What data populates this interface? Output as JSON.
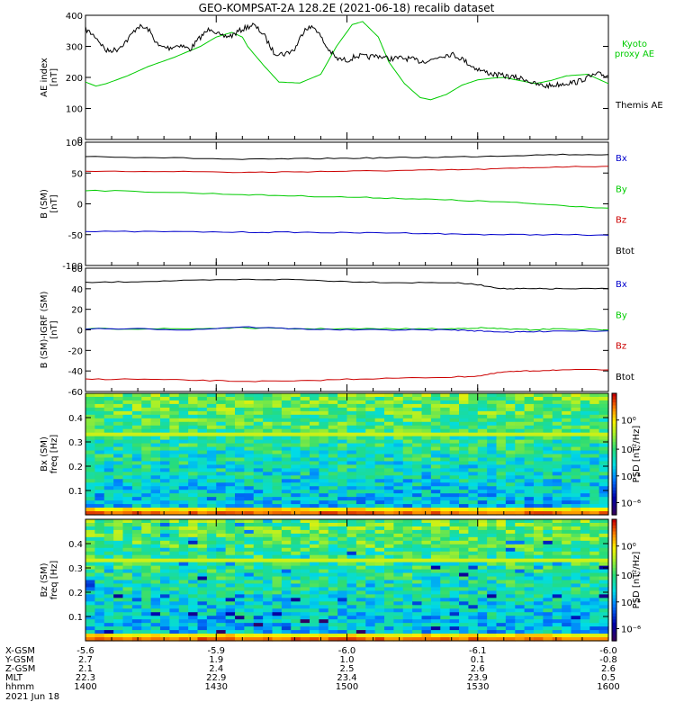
{
  "chart_data": {
    "title": "GEO-KOMPSAT-2A 128.2E (2021-06-18) recalib dataset",
    "panels": [
      {
        "type": "line",
        "ylabel_lines": [
          "AE index",
          "[nT]"
        ],
        "ylim": [
          0,
          400
        ],
        "yticks": [
          0,
          100,
          200,
          300,
          400
        ],
        "grid": false,
        "legend": [
          "Kyoto",
          "proxy AE",
          "Themis AE"
        ],
        "series": [
          {
            "name": "Kyoto proxy AE",
            "color": "#00cc00",
            "x": [
              0,
              2,
              4,
              8,
              12,
              17,
              22,
              25,
              28,
              30,
              31,
              34,
              37,
              41,
              45,
              48,
              51,
              53,
              56,
              58,
              61,
              64,
              66,
              69,
              72,
              75,
              78,
              80,
              83,
              86,
              89,
              92,
              96,
              100
            ],
            "y": [
              185,
              172,
              180,
              205,
              235,
              265,
              300,
              330,
              345,
              330,
              300,
              240,
              185,
              182,
              210,
              300,
              370,
              380,
              330,
              250,
              180,
              135,
              128,
              145,
              175,
              192,
              198,
              200,
              190,
              180,
              190,
              205,
              210,
              180
            ]
          },
          {
            "name": "Themis AE",
            "color": "#000000",
            "x": [
              0,
              2,
              4,
              6,
              8,
              10,
              12,
              14,
              16,
              18,
              20,
              22,
              24,
              26,
              28,
              30,
              32,
              34,
              36,
              38,
              40,
              42,
              44,
              46,
              48,
              50,
              52,
              54,
              56,
              58,
              60,
              62,
              64,
              66,
              68,
              70,
              72,
              74,
              76,
              78,
              80,
              82,
              84,
              86,
              88,
              90,
              92,
              94,
              96,
              98,
              100
            ],
            "y": [
              355,
              330,
              285,
              290,
              320,
              365,
              355,
              300,
              295,
              305,
              290,
              330,
              360,
              330,
              335,
              355,
              370,
              340,
              280,
              275,
              290,
              360,
              360,
              300,
              260,
              255,
              270,
              265,
              270,
              260,
              262,
              260,
              252,
              255,
              270,
              275,
              260,
              235,
              220,
              210,
              205,
              200,
              195,
              178,
              172,
              176,
              182,
              185,
              200,
              210,
              205
            ]
          }
        ]
      },
      {
        "type": "line",
        "ylabel_lines": [
          "B (SM)",
          "[nT]"
        ],
        "ylim": [
          -100,
          100
        ],
        "yticks": [
          -100,
          -50,
          0,
          50,
          100
        ],
        "grid": false,
        "legend": [
          "Bx",
          "By",
          "Bz",
          "Btot"
        ],
        "series": [
          {
            "name": "Btot",
            "color": "#000000",
            "x": [
              0,
              15,
              30,
              40,
              50,
              60,
              70,
              80,
              90,
              100
            ],
            "y": [
              77,
              75,
              72,
              73,
              74,
              75,
              76,
              78,
              80,
              80
            ]
          },
          {
            "name": "Bz",
            "color": "#cc0000",
            "x": [
              0,
              15,
              30,
              40,
              50,
              60,
              70,
              80,
              90,
              100
            ],
            "y": [
              52,
              53,
              51,
              52,
              53,
              54,
              55,
              57,
              60,
              61
            ]
          },
          {
            "name": "By",
            "color": "#00cc00",
            "x": [
              0,
              15,
              30,
              40,
              50,
              60,
              70,
              80,
              90,
              100
            ],
            "y": [
              22,
              19,
              15,
              13,
              11,
              9,
              6,
              3,
              -2,
              -7
            ]
          },
          {
            "name": "Bx",
            "color": "#0000cc",
            "x": [
              0,
              15,
              30,
              40,
              50,
              60,
              70,
              80,
              90,
              100
            ],
            "y": [
              -45,
              -45,
              -46,
              -46,
              -47,
              -47,
              -49,
              -50,
              -50,
              -51
            ]
          }
        ]
      },
      {
        "type": "line",
        "ylabel_lines": [
          "B (SM)-IGRF (SM)",
          "[nT]"
        ],
        "ylim": [
          -60,
          60
        ],
        "yticks": [
          -60,
          -40,
          -20,
          0,
          20,
          40,
          60
        ],
        "grid": false,
        "legend": [
          "Bx",
          "By",
          "Bz",
          "Btot"
        ],
        "series": [
          {
            "name": "Btot",
            "color": "#000000",
            "x": [
              0,
              10,
              20,
              30,
              40,
              50,
              60,
              70,
              75,
              80,
              85,
              90,
              100
            ],
            "y": [
              46,
              47,
              48,
              49,
              49,
              47,
              46,
              46,
              44,
              40,
              40,
              40,
              40
            ]
          },
          {
            "name": "Bz",
            "color": "#cc0000",
            "x": [
              0,
              10,
              20,
              30,
              40,
              50,
              60,
              70,
              75,
              80,
              85,
              90,
              100
            ],
            "y": [
              -48,
              -48,
              -49,
              -50,
              -50,
              -48,
              -47,
              -46,
              -45,
              -41,
              -40,
              -39,
              -39
            ]
          },
          {
            "name": "By",
            "color": "#00cc00",
            "x": [
              0,
              10,
              20,
              30,
              40,
              50,
              60,
              70,
              75,
              80,
              85,
              90,
              100
            ],
            "y": [
              1,
              1,
              1,
              2,
              1,
              1,
              1,
              1,
              2,
              1,
              0,
              1,
              0
            ]
          },
          {
            "name": "Bx",
            "color": "#0000cc",
            "x": [
              0,
              10,
              20,
              30,
              40,
              50,
              60,
              70,
              75,
              80,
              85,
              90,
              100
            ],
            "y": [
              1,
              1,
              0,
              3,
              1,
              0,
              0,
              0,
              -1,
              -2,
              -2,
              -1,
              -1
            ]
          }
        ]
      },
      {
        "type": "heatmap",
        "ylabel_lines": [
          "Bx (SM)",
          "freq [Hz]"
        ],
        "ylim": [
          0,
          0.5
        ],
        "yticks": [
          0.1,
          0.2,
          0.3,
          0.4
        ],
        "colorbar_label": "PSD [nT²/Hz]",
        "colorbar_ticks": [
          "10⁰",
          "10⁻²",
          "10⁻⁴",
          "10⁻⁶"
        ]
      },
      {
        "type": "heatmap",
        "ylabel_lines": [
          "Bz (SM)",
          "freq [Hz]"
        ],
        "ylim": [
          0,
          0.5
        ],
        "yticks": [
          0.1,
          0.2,
          0.3,
          0.4
        ],
        "colorbar_label": "PSD [nT²/Hz]",
        "colorbar_ticks": [
          "10⁰",
          "10⁻²",
          "10⁻⁴",
          "10⁻⁶"
        ]
      }
    ],
    "x_axis_rows": [
      {
        "label": "X-GSM",
        "values": [
          "-5.6",
          "-5.9",
          "-6.0",
          "-6.1",
          "-6.0"
        ]
      },
      {
        "label": "Y-GSM",
        "values": [
          "2.7",
          "1.9",
          "1.0",
          "0.1",
          "-0.8"
        ]
      },
      {
        "label": "Z-GSM",
        "values": [
          "2.1",
          "2.4",
          "2.5",
          "2.6",
          "2.6"
        ]
      },
      {
        "label": "MLT",
        "values": [
          "22.3",
          "22.9",
          "23.4",
          "23.9",
          "0.5"
        ]
      },
      {
        "label": "hhmm",
        "values": [
          "1400",
          "1430",
          "1500",
          "1530",
          "1600"
        ]
      }
    ],
    "date_label": "2021 Jun 18"
  }
}
